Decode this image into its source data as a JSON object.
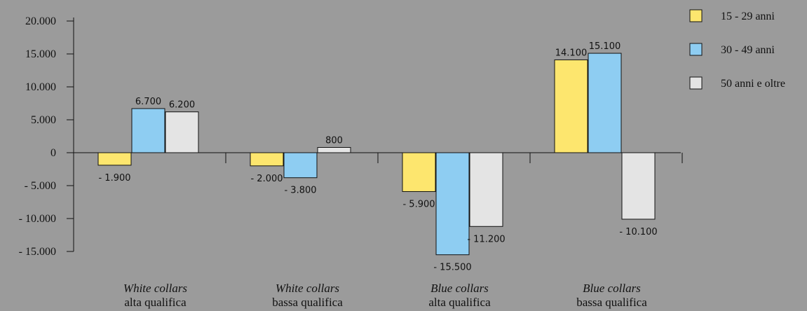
{
  "chart_data": {
    "type": "bar",
    "categories": [
      {
        "line1": "White collars",
        "line2": "alta qualifica"
      },
      {
        "line1": "White collars",
        "line2": "bassa qualifica"
      },
      {
        "line1": "Blue collars",
        "line2": "alta qualifica"
      },
      {
        "line1": "Blue collars",
        "line2": "bassa qualifica"
      }
    ],
    "series": [
      {
        "name": "15 - 29 anni",
        "color": "#fde66e",
        "values": [
          -1900,
          -2000,
          -5900,
          14100
        ],
        "labels": [
          "- 1.900",
          "- 2.000",
          "- 5.900",
          "14.100"
        ]
      },
      {
        "name": "30 - 49 anni",
        "color": "#8ecdf2",
        "values": [
          6700,
          -3800,
          -15500,
          15100
        ],
        "labels": [
          "6.700",
          "- 3.800",
          "- 15.500",
          "15.100"
        ]
      },
      {
        "name": "50 anni e oltre",
        "color": "#e4e4e4",
        "values": [
          6200,
          800,
          -11200,
          -10100
        ],
        "labels": [
          "6.200",
          "800",
          "- 11.200",
          "- 10.100"
        ]
      }
    ],
    "yticks": [
      20000,
      15000,
      10000,
      5000,
      0,
      -5000,
      -10000,
      -15000
    ],
    "ytick_labels": [
      "20.000",
      "15.000",
      "10.000",
      "5.000",
      "0",
      "- 5.000",
      "- 10.000",
      "- 15.000"
    ],
    "ylim": [
      -15000,
      20000
    ],
    "grid": false,
    "legend_position": "top-right"
  }
}
